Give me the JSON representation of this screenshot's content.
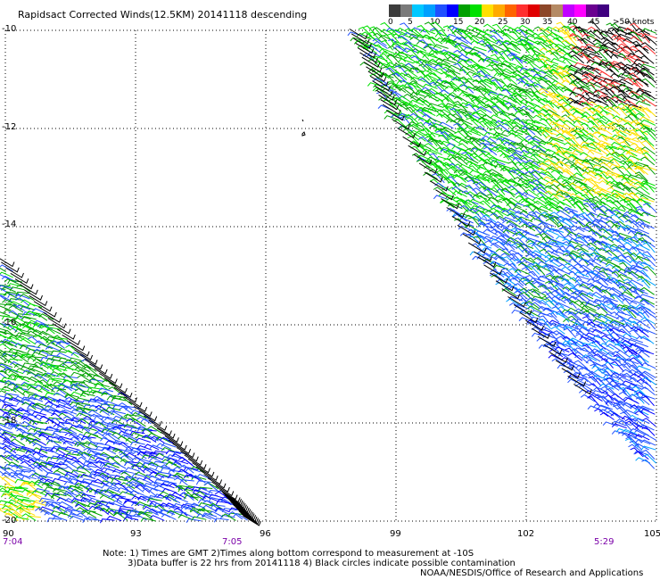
{
  "title": "Rapidsact Corrected Winds(12.5KM) 20141118 descending",
  "colorbar": {
    "colors": [
      "#3c3c3c",
      "#7a7a7a",
      "#00c8ff",
      "#00a0ff",
      "#2050ff",
      "#0000ff",
      "#00a000",
      "#00e000",
      "#ffe000",
      "#ffaa00",
      "#ff6400",
      "#ff3030",
      "#e00000",
      "#8c4628",
      "#b48a64",
      "#c000ff",
      "#ff00ff",
      "#6a0090",
      "#400080"
    ],
    "labels": [
      "0",
      "5",
      "10",
      "15",
      "20",
      "25",
      "30",
      "35",
      "40",
      "45",
      ">50 knots"
    ]
  },
  "axes": {
    "lat_labels": [
      "-10",
      "-12",
      "-14",
      "-16",
      "-18",
      "-20"
    ],
    "lon_labels": [
      "90",
      "93",
      "96",
      "99",
      "102",
      "105"
    ]
  },
  "times": [
    "7:04",
    "7:05",
    "5:29"
  ],
  "notes": {
    "line1": "Note: 1) Times are GMT 2)Times along bottom correspond to measurement at -10S",
    "line2": "3)Data buffer is 22 hrs from 20141118 4) Black circles indicate possible contamination",
    "line3": "NOAA/NESDIS/Office of Research and Applications"
  },
  "chart_data": {
    "type": "wind-barb-map",
    "xlim": [
      90,
      105
    ],
    "ylim": [
      -20,
      -10
    ],
    "grid": true,
    "swaths": [
      {
        "name": "east",
        "polygon_lon_lat": [
          [
            98.1,
            -10
          ],
          [
            105,
            -10
          ],
          [
            105,
            -19.0
          ],
          [
            103.3,
            -17.3
          ],
          [
            101.0,
            -14.6
          ],
          [
            98.9,
            -11.6
          ],
          [
            98.1,
            -10
          ]
        ]
      },
      {
        "name": "west",
        "polygon_lon_lat": [
          [
            90,
            -14.7
          ],
          [
            91.8,
            -16.6
          ],
          [
            93.7,
            -18.2
          ],
          [
            95.2,
            -19.5
          ],
          [
            95.7,
            -20
          ],
          [
            90,
            -20
          ],
          [
            90,
            -14.7
          ]
        ]
      }
    ]
  }
}
